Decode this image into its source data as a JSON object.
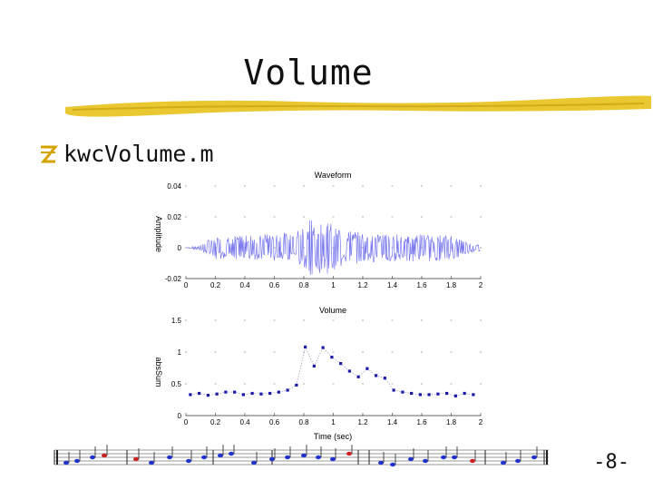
{
  "slide": {
    "title": "Volume",
    "bullet_text": "kwcVolume.m",
    "page_number": "-8-",
    "colors": {
      "accent": "#e8c21c",
      "bullet": "#d4a300",
      "waveform": "#7a7aee",
      "points": "#1a1aa8",
      "note_blue": "#2233cc",
      "note_red": "#cc2222"
    }
  },
  "chart_data": [
    {
      "type": "line",
      "title": "Waveform",
      "xlabel": "",
      "ylabel": "Amplitude",
      "xlim": [
        0,
        2
      ],
      "ylim": [
        -0.02,
        0.04
      ],
      "x_ticks": [
        "0",
        "0.2",
        "0.4",
        "0.6",
        "0.8",
        "1",
        "1.2",
        "1.4",
        "1.6",
        "1.8",
        "2"
      ],
      "y_ticks": [
        "-0.02",
        "0",
        "0.02",
        "0.04"
      ],
      "series": [
        {
          "name": "",
          "envelope_x": [
            0,
            0.1,
            0.2,
            0.4,
            0.6,
            0.75,
            0.85,
            0.95,
            1.05,
            1.2,
            1.4,
            1.6,
            1.8,
            1.9,
            2.0
          ],
          "envelope_y": [
            0,
            0.002,
            0.008,
            0.008,
            0.009,
            0.011,
            0.019,
            0.018,
            0.012,
            0.01,
            0.009,
            0.009,
            0.008,
            0.004,
            0.002
          ]
        }
      ]
    },
    {
      "type": "scatter",
      "title": "Volume",
      "xlabel": "Time (sec)",
      "ylabel": "absSum",
      "xlim": [
        0,
        2
      ],
      "ylim": [
        0,
        1.5
      ],
      "x_ticks": [
        "0",
        "0.2",
        "0.4",
        "0.6",
        "0.8",
        "1",
        "1.2",
        "1.4",
        "1.6",
        "1.8",
        "2"
      ],
      "y_ticks": [
        "0",
        "0.5",
        "1",
        "1.5"
      ],
      "series": [
        {
          "name": "",
          "x": [
            0.03,
            0.09,
            0.15,
            0.21,
            0.27,
            0.33,
            0.39,
            0.45,
            0.51,
            0.57,
            0.63,
            0.69,
            0.75,
            0.81,
            0.87,
            0.93,
            0.99,
            1.05,
            1.11,
            1.17,
            1.23,
            1.29,
            1.35,
            1.41,
            1.47,
            1.53,
            1.59,
            1.65,
            1.71,
            1.77,
            1.83,
            1.89,
            1.95
          ],
          "y": [
            0.33,
            0.35,
            0.32,
            0.34,
            0.37,
            0.37,
            0.33,
            0.35,
            0.34,
            0.35,
            0.37,
            0.4,
            0.48,
            1.08,
            0.78,
            1.07,
            0.92,
            0.82,
            0.7,
            0.61,
            0.74,
            0.63,
            0.59,
            0.4,
            0.37,
            0.35,
            0.33,
            0.33,
            0.34,
            0.35,
            0.31,
            0.35,
            0.33
          ]
        }
      ]
    }
  ]
}
